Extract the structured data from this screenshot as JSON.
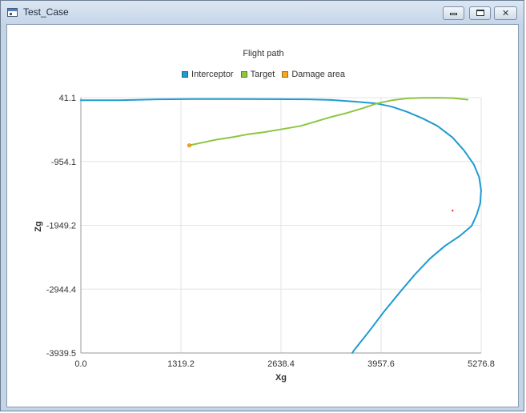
{
  "window": {
    "title": "Test_Case",
    "icon": "app-window-icon"
  },
  "chart_data": {
    "type": "line",
    "title": "Flight path",
    "xlabel": "Xg",
    "ylabel": "Zg",
    "xlim": [
      0.0,
      5276.8
    ],
    "ylim": [
      -3939.5,
      41.1
    ],
    "x_ticks": [
      "0.0",
      "1319.2",
      "2638.4",
      "3957.6",
      "5276.8"
    ],
    "y_ticks": [
      "41.1",
      "-954.1",
      "-1949.2",
      "-2944.4",
      "-3939.5"
    ],
    "grid": true,
    "legend_position": "top",
    "series": [
      {
        "name": "Interceptor",
        "color": "#1f9bd1",
        "points": [
          [
            0,
            0
          ],
          [
            500,
            0
          ],
          [
            1000,
            15
          ],
          [
            1500,
            20
          ],
          [
            2000,
            20
          ],
          [
            2500,
            18
          ],
          [
            3000,
            15
          ],
          [
            3300,
            5
          ],
          [
            3600,
            -20
          ],
          [
            3900,
            -50
          ],
          [
            4100,
            -100
          ],
          [
            4300,
            -180
          ],
          [
            4500,
            -280
          ],
          [
            4700,
            -400
          ],
          [
            4900,
            -580
          ],
          [
            5050,
            -780
          ],
          [
            5180,
            -1000
          ],
          [
            5250,
            -1200
          ],
          [
            5276,
            -1400
          ],
          [
            5265,
            -1600
          ],
          [
            5220,
            -1780
          ],
          [
            5150,
            -1960
          ],
          [
            5000,
            -2110
          ],
          [
            4800,
            -2270
          ],
          [
            4600,
            -2470
          ],
          [
            4400,
            -2720
          ],
          [
            4200,
            -3000
          ],
          [
            4000,
            -3290
          ],
          [
            3800,
            -3600
          ],
          [
            3600,
            -3900
          ],
          [
            3578,
            -3939.5
          ]
        ]
      },
      {
        "name": "Target",
        "color": "#8cc63f",
        "points": [
          [
            1440,
            -700
          ],
          [
            1600,
            -660
          ],
          [
            1800,
            -610
          ],
          [
            2000,
            -575
          ],
          [
            2200,
            -530
          ],
          [
            2400,
            -500
          ],
          [
            2600,
            -460
          ],
          [
            2900,
            -400
          ],
          [
            3100,
            -330
          ],
          [
            3300,
            -260
          ],
          [
            3500,
            -200
          ],
          [
            3700,
            -130
          ],
          [
            3900,
            -50
          ],
          [
            4100,
            0
          ],
          [
            4300,
            30
          ],
          [
            4500,
            38
          ],
          [
            4700,
            40
          ],
          [
            4900,
            35
          ],
          [
            5100,
            10
          ]
        ]
      },
      {
        "name": "Damage area",
        "color": "#f5a623",
        "points": [
          [
            1430,
            -705
          ]
        ]
      }
    ],
    "annotations": [
      {
        "type": "point",
        "x": 4900,
        "y": -1720,
        "color": "#e53935"
      }
    ]
  }
}
